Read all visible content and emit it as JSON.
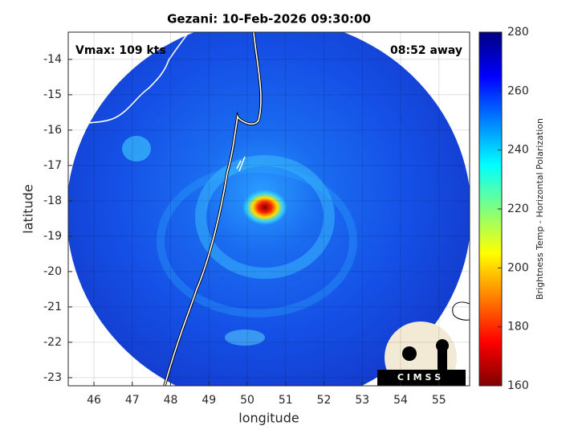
{
  "chart_data": {
    "type": "map",
    "title": "Gezani: 10-Feb-2026 09:30:00",
    "annotations": [
      "Vmax: 109 kts",
      "08:52 away"
    ],
    "xlabel": "longitude",
    "ylabel": "latitude",
    "xlim": [
      45.33,
      55.8
    ],
    "ylim": [
      -23.23,
      -13.23
    ],
    "xticks": [
      46,
      47,
      48,
      49,
      50,
      51,
      52,
      53,
      54,
      55
    ],
    "yticks": [
      -14,
      -15,
      -16,
      -17,
      -18,
      -19,
      -20,
      -21,
      -22,
      -23
    ],
    "grid": true,
    "colorbar": {
      "label": "Brightness Temp - Horizontal Polarization",
      "lim": [
        160,
        280
      ],
      "ticks": [
        160,
        180,
        200,
        220,
        240,
        260,
        280
      ],
      "colormap": [
        "#800000",
        "#ff0000",
        "#ff8000",
        "#ffff00",
        "#80ff80",
        "#00ffff",
        "#0080ff",
        "#0000ff",
        "#000080"
      ]
    },
    "logo": "C I M S S"
  }
}
